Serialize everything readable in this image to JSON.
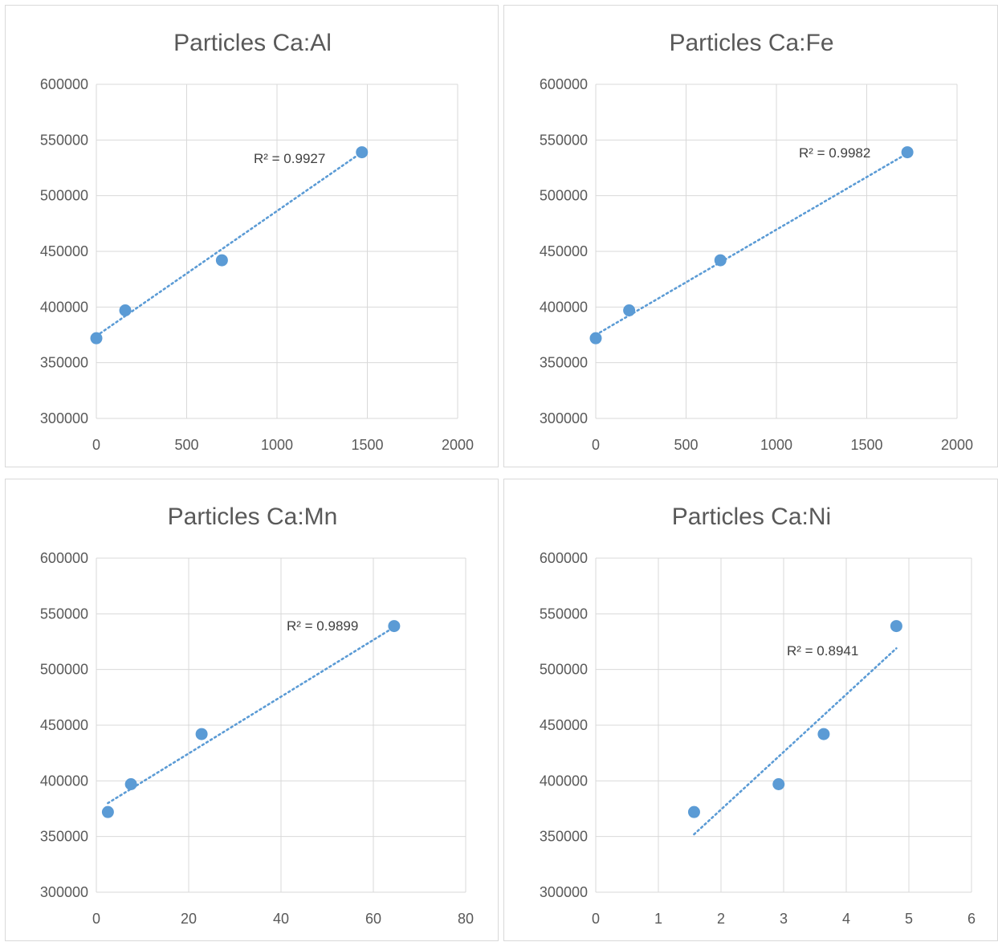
{
  "chart_data": [
    {
      "type": "scatter",
      "title": "Particles Ca:Al",
      "xlim": [
        0,
        2000
      ],
      "ylim": [
        300000,
        600000
      ],
      "xticks": [
        "0",
        "500",
        "1000",
        "1500",
        "2000"
      ],
      "yticks": [
        "300000",
        "350000",
        "400000",
        "450000",
        "500000",
        "550000",
        "600000"
      ],
      "series": [
        {
          "x": [
            0,
            160,
            695,
            1470
          ],
          "y": [
            372000,
            397000,
            442000,
            539000
          ]
        }
      ],
      "trendline": {
        "type": "linear",
        "x": [
          0,
          1470
        ],
        "y": [
          374000,
          539000
        ]
      },
      "r2_label": "R² = 0.9927",
      "grid": true
    },
    {
      "type": "scatter",
      "title": "Particles Ca:Fe",
      "xlim": [
        0,
        2000
      ],
      "ylim": [
        300000,
        600000
      ],
      "xticks": [
        "0",
        "500",
        "1000",
        "1500",
        "2000"
      ],
      "yticks": [
        "300000",
        "350000",
        "400000",
        "450000",
        "500000",
        "550000",
        "600000"
      ],
      "series": [
        {
          "x": [
            0,
            185,
            690,
            1725
          ],
          "y": [
            372000,
            397000,
            442000,
            539000
          ]
        }
      ],
      "trendline": {
        "type": "linear",
        "x": [
          0,
          1725
        ],
        "y": [
          375000,
          538000
        ]
      },
      "r2_label": "R² = 0.9982",
      "grid": true
    },
    {
      "type": "scatter",
      "title": "Particles Ca:Mn",
      "xlim": [
        0,
        80
      ],
      "ylim": [
        300000,
        600000
      ],
      "xticks": [
        "0",
        "20",
        "40",
        "60",
        "80"
      ],
      "yticks": [
        "300000",
        "350000",
        "400000",
        "450000",
        "500000",
        "550000",
        "600000"
      ],
      "series": [
        {
          "x": [
            2.5,
            7.5,
            22.8,
            64.5
          ],
          "y": [
            372000,
            397000,
            442000,
            539000
          ]
        }
      ],
      "trendline": {
        "type": "linear",
        "x": [
          2.5,
          64.5
        ],
        "y": [
          380000,
          538000
        ]
      },
      "r2_label": "R² = 0.9899",
      "grid": true
    },
    {
      "type": "scatter",
      "title": "Particles Ca:Ni",
      "xlim": [
        0,
        6
      ],
      "ylim": [
        300000,
        600000
      ],
      "xticks": [
        "0",
        "1",
        "2",
        "3",
        "4",
        "5",
        "6"
      ],
      "yticks": [
        "300000",
        "350000",
        "400000",
        "450000",
        "500000",
        "550000",
        "600000"
      ],
      "series": [
        {
          "x": [
            1.57,
            2.92,
            3.64,
            4.8
          ],
          "y": [
            372000,
            397000,
            442000,
            539000
          ]
        }
      ],
      "trendline": {
        "type": "linear",
        "x": [
          1.57,
          4.8
        ],
        "y": [
          352000,
          519000
        ]
      },
      "r2_label": "R² = 0.8941",
      "grid": true
    }
  ],
  "style": {
    "marker_color": "#5b9bd5",
    "grid_color": "#d9d9d9",
    "text_color": "#595959"
  }
}
